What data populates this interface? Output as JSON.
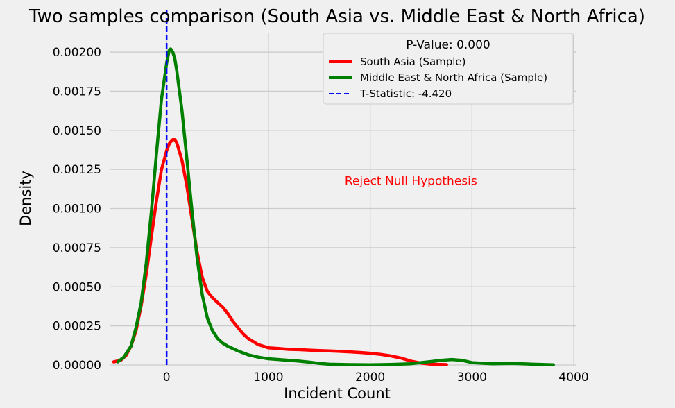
{
  "chart_data": {
    "type": "line",
    "title": "Two samples comparison (South Asia vs. Middle East & North Africa)",
    "xlabel": "Incident Count",
    "ylabel": "Density",
    "xlim": [
      -560,
      4020
    ],
    "ylim": [
      0,
      0.00212
    ],
    "xticks": [
      0,
      1000,
      2000,
      3000,
      4000
    ],
    "xtick_labels": [
      "0",
      "1000",
      "2000",
      "3000",
      "4000"
    ],
    "yticks": [
      0,
      0.00025,
      0.0005,
      0.00075,
      0.001,
      0.00125,
      0.0015,
      0.00175,
      0.002
    ],
    "ytick_labels": [
      "0.00000",
      "0.00025",
      "0.00050",
      "0.00075",
      "0.00100",
      "0.00125",
      "0.00150",
      "0.00175",
      "0.00200"
    ],
    "grid": true,
    "legend": {
      "title": "P-Value: 0.000",
      "placement": "top-right"
    },
    "series": [
      {
        "name": "South Asia (Sample)",
        "color": "#ff0000",
        "x": [
          -520,
          -450,
          -400,
          -350,
          -300,
          -250,
          -200,
          -150,
          -100,
          -50,
          0,
          30,
          60,
          80,
          100,
          150,
          200,
          250,
          300,
          350,
          400,
          450,
          500,
          550,
          600,
          650,
          700,
          750,
          800,
          850,
          900,
          950,
          1000,
          1100,
          1200,
          1300,
          1400,
          1500,
          1600,
          1700,
          1800,
          1900,
          2000,
          2100,
          2200,
          2300,
          2400,
          2500,
          2600,
          2750
        ],
        "y": [
          2e-05,
          3e-05,
          6e-05,
          0.00012,
          0.00022,
          0.00038,
          0.00058,
          0.00082,
          0.00105,
          0.00125,
          0.00137,
          0.00142,
          0.00144,
          0.00144,
          0.00142,
          0.00131,
          0.00114,
          0.00093,
          0.00072,
          0.00056,
          0.00047,
          0.00043,
          0.0004,
          0.00037,
          0.00033,
          0.00028,
          0.00024,
          0.0002,
          0.00017,
          0.00015,
          0.00013,
          0.00012,
          0.00011,
          0.000105,
          0.0001,
          9.8e-05,
          9.5e-05,
          9.2e-05,
          9e-05,
          8.7e-05,
          8.4e-05,
          8e-05,
          7.5e-05,
          6.8e-05,
          5.8e-05,
          4.5e-05,
          2.5e-05,
          1.2e-05,
          5e-06,
          2e-06
        ]
      },
      {
        "name": "Middle East & North Africa (Sample)",
        "color": "#008000",
        "x": [
          -480,
          -420,
          -350,
          -300,
          -250,
          -200,
          -150,
          -100,
          -50,
          0,
          25,
          40,
          60,
          80,
          100,
          150,
          200,
          250,
          300,
          350,
          400,
          450,
          500,
          550,
          600,
          700,
          800,
          900,
          1000,
          1100,
          1200,
          1300,
          1400,
          1500,
          1600,
          1800,
          2000,
          2200,
          2400,
          2600,
          2700,
          2800,
          2900,
          3000,
          3200,
          3400,
          3600,
          3800
        ],
        "y": [
          2e-05,
          5e-05,
          0.00012,
          0.00024,
          0.0004,
          0.00065,
          0.00098,
          0.00135,
          0.0017,
          0.00193,
          0.00201,
          0.00202,
          0.002,
          0.00196,
          0.00188,
          0.00163,
          0.00131,
          0.00098,
          0.00068,
          0.00045,
          0.0003,
          0.00022,
          0.00017,
          0.00014,
          0.00012,
          9e-05,
          6.5e-05,
          5e-05,
          4e-05,
          3.5e-05,
          3e-05,
          2.5e-05,
          1.8e-05,
          1e-05,
          5e-06,
          2e-06,
          1e-06,
          3e-06,
          8e-06,
          2.2e-05,
          3e-05,
          3.5e-05,
          3e-05,
          1.5e-05,
          8e-06,
          1e-05,
          5e-06,
          1e-06
        ]
      }
    ],
    "reference_line": {
      "label": "T-Statistic: -4.420",
      "x": 0,
      "color": "#0000ff",
      "style": "dashed"
    },
    "annotation": {
      "text": "Reject Null Hypothesis",
      "x": 2400,
      "y": 0.00108,
      "color": "#ff0000"
    }
  }
}
